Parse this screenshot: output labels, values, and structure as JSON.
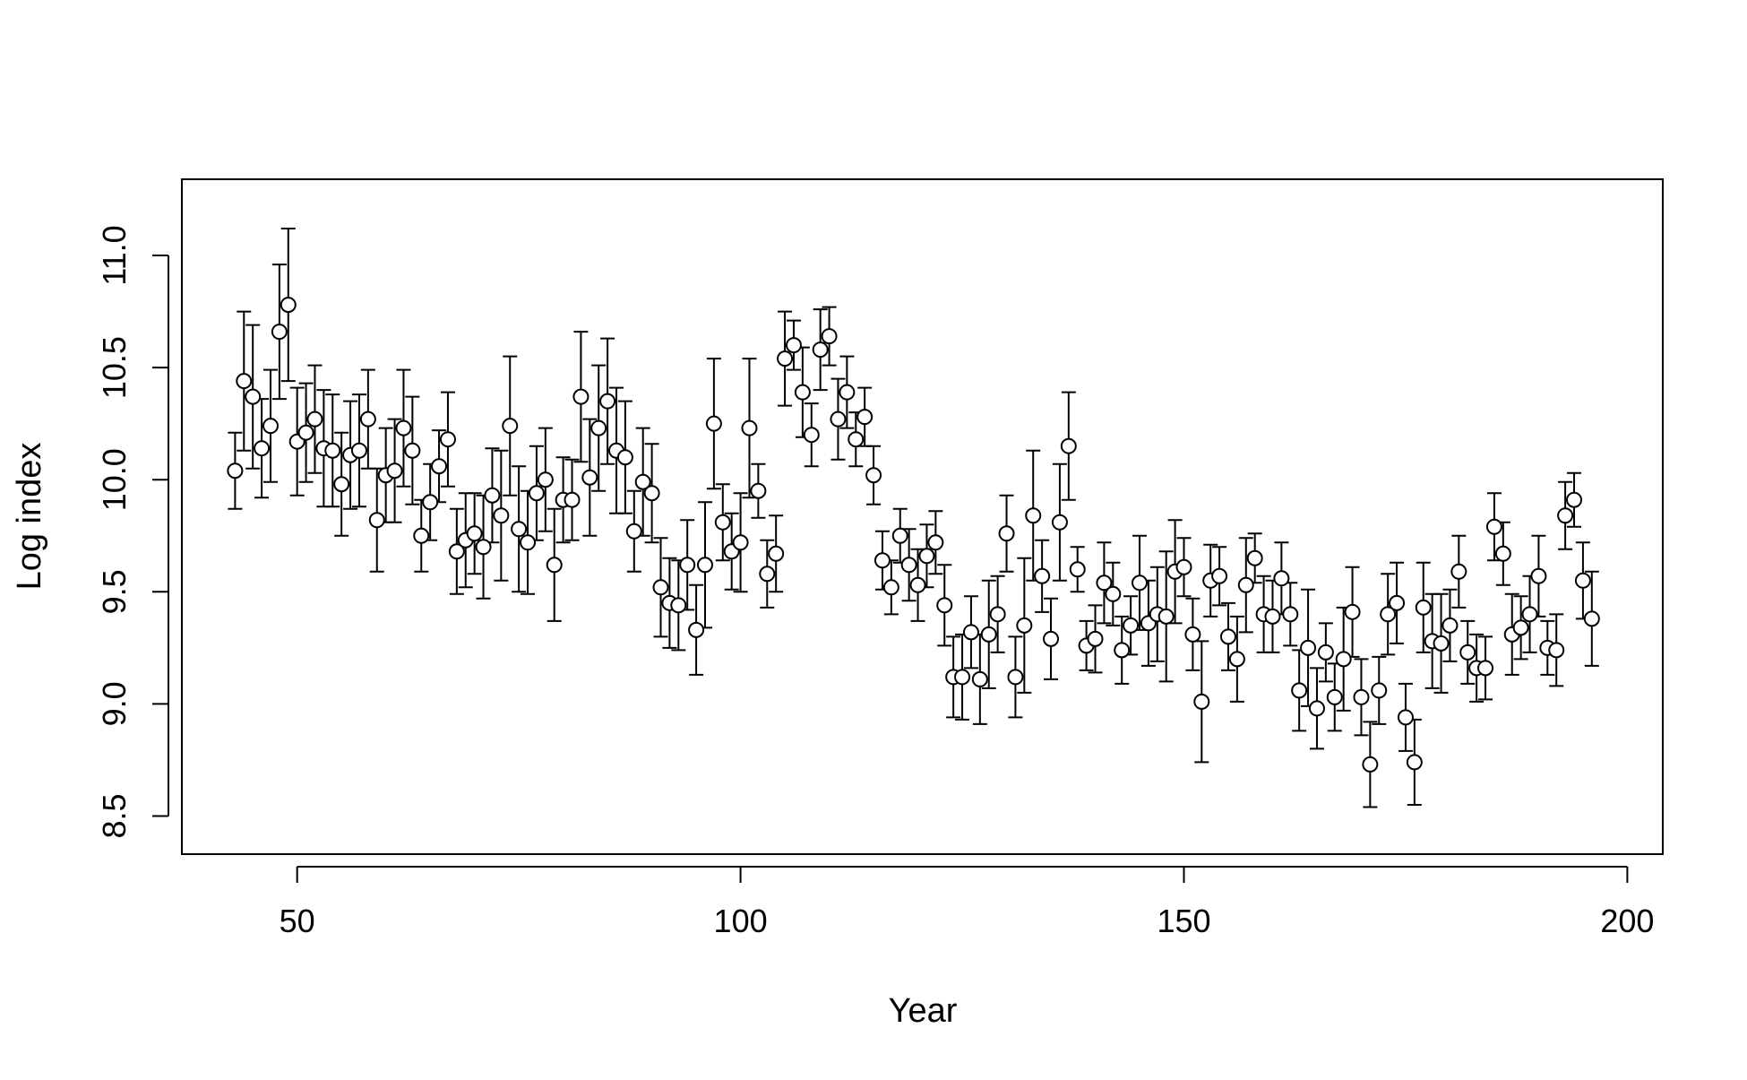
{
  "chart_data": {
    "type": "scatter",
    "title": "",
    "xlabel": "Year",
    "ylabel": "Log index",
    "xlim": [
      37,
      204
    ],
    "ylim": [
      8.33,
      11.34
    ],
    "xticks": [
      "50",
      "100",
      "150",
      "200"
    ],
    "yticks": [
      "8.5",
      "9.0",
      "9.5",
      "10.0",
      "10.5",
      "11.0"
    ],
    "grid": false,
    "legend": "none",
    "error_bars": true,
    "colors": {
      "point_fill": "#ffffff",
      "stroke": "#000000",
      "background": "#ffffff"
    },
    "series": [
      {
        "x": [
          43,
          44,
          45,
          46,
          47,
          48,
          49,
          50,
          51,
          52,
          53,
          54,
          55,
          56,
          57,
          58,
          59,
          60,
          61,
          62,
          63,
          64,
          65,
          66,
          67,
          68,
          69,
          70,
          71,
          72,
          73,
          74,
          75,
          76,
          77,
          78,
          79,
          80,
          81,
          82,
          83,
          84,
          85,
          86,
          87,
          88,
          89,
          90,
          91,
          92,
          93,
          94,
          95,
          96,
          97,
          98,
          99,
          100,
          101,
          102,
          103,
          104,
          105,
          106,
          107,
          108,
          109,
          110,
          111,
          112,
          113,
          114,
          115,
          116,
          117,
          118,
          119,
          120,
          121,
          122,
          123,
          124,
          125,
          126,
          127,
          128,
          129,
          130,
          131,
          132,
          133,
          134,
          135,
          136,
          137,
          138,
          139,
          140,
          141,
          142,
          143,
          144,
          145,
          146,
          147,
          148,
          149,
          150,
          151,
          152,
          153,
          154,
          155,
          156,
          157,
          158,
          159,
          160,
          161,
          162,
          163,
          164,
          165,
          166,
          167,
          168,
          169,
          170,
          171,
          172,
          173,
          174,
          175,
          176,
          177,
          178,
          179,
          180,
          181,
          182,
          183,
          184,
          185,
          186,
          187,
          188,
          189,
          190,
          191,
          192,
          193,
          194,
          195,
          196
        ],
        "y": [
          10.04,
          10.44,
          10.37,
          10.14,
          10.24,
          10.66,
          10.78,
          10.17,
          10.21,
          10.27,
          10.14,
          10.13,
          9.98,
          10.11,
          10.13,
          10.27,
          9.82,
          10.02,
          10.04,
          10.23,
          10.13,
          9.75,
          9.9,
          10.06,
          10.18,
          9.68,
          9.73,
          9.76,
          9.7,
          9.93,
          9.84,
          10.24,
          9.78,
          9.72,
          9.94,
          10.0,
          9.62,
          9.91,
          9.91,
          10.37,
          10.01,
          10.23,
          10.35,
          10.13,
          10.1,
          9.77,
          9.99,
          9.94,
          9.52,
          9.45,
          9.44,
          9.62,
          9.33,
          9.62,
          10.25,
          9.81,
          9.68,
          9.72,
          10.23,
          9.95,
          9.58,
          9.67,
          10.54,
          10.6,
          10.39,
          10.2,
          10.58,
          10.64,
          10.27,
          10.39,
          10.18,
          10.28,
          10.02,
          9.64,
          9.52,
          9.75,
          9.62,
          9.53,
          9.66,
          9.72,
          9.44,
          9.12,
          9.12,
          9.32,
          9.11,
          9.31,
          9.4,
          9.76,
          9.12,
          9.35,
          9.84,
          9.57,
          9.29,
          9.81,
          10.15,
          9.6,
          9.26,
          9.29,
          9.54,
          9.49,
          9.24,
          9.35,
          9.54,
          9.36,
          9.4,
          9.39,
          9.59,
          9.61,
          9.31,
          9.01,
          9.55,
          9.57,
          9.3,
          9.2,
          9.53,
          9.65,
          9.4,
          9.39,
          9.56,
          9.4,
          9.06,
          9.25,
          8.98,
          9.23,
          9.03,
          9.2,
          9.41,
          9.03,
          8.73,
          9.06,
          9.4,
          9.45,
          8.94,
          8.74,
          9.43,
          9.28,
          9.27,
          9.35,
          9.59,
          9.23,
          9.16,
          9.16,
          9.79,
          9.67,
          9.31,
          9.34,
          9.4,
          9.57,
          9.25,
          9.24,
          9.84,
          9.91,
          9.55,
          9.38
        ],
        "err": [
          0.17,
          0.31,
          0.32,
          0.22,
          0.25,
          0.3,
          0.34,
          0.24,
          0.22,
          0.24,
          0.26,
          0.25,
          0.23,
          0.24,
          0.25,
          0.22,
          0.23,
          0.21,
          0.23,
          0.26,
          0.24,
          0.16,
          0.17,
          0.16,
          0.21,
          0.19,
          0.21,
          0.18,
          0.23,
          0.21,
          0.29,
          0.31,
          0.28,
          0.23,
          0.21,
          0.23,
          0.25,
          0.19,
          0.18,
          0.29,
          0.26,
          0.28,
          0.28,
          0.28,
          0.25,
          0.18,
          0.24,
          0.22,
          0.22,
          0.2,
          0.2,
          0.2,
          0.2,
          0.28,
          0.29,
          0.17,
          0.17,
          0.22,
          0.31,
          0.12,
          0.15,
          0.17,
          0.21,
          0.11,
          0.2,
          0.14,
          0.18,
          0.13,
          0.18,
          0.16,
          0.12,
          0.13,
          0.13,
          0.13,
          0.12,
          0.12,
          0.16,
          0.16,
          0.14,
          0.14,
          0.18,
          0.18,
          0.19,
          0.16,
          0.2,
          0.24,
          0.17,
          0.17,
          0.18,
          0.3,
          0.29,
          0.16,
          0.18,
          0.26,
          0.24,
          0.1,
          0.11,
          0.15,
          0.18,
          0.14,
          0.15,
          0.13,
          0.21,
          0.19,
          0.21,
          0.29,
          0.23,
          0.13,
          0.16,
          0.27,
          0.16,
          0.13,
          0.15,
          0.19,
          0.21,
          0.11,
          0.17,
          0.16,
          0.16,
          0.14,
          0.18,
          0.26,
          0.18,
          0.13,
          0.15,
          0.23,
          0.2,
          0.17,
          0.19,
          0.15,
          0.18,
          0.18,
          0.15,
          0.19,
          0.2,
          0.21,
          0.22,
          0.16,
          0.16,
          0.14,
          0.15,
          0.14,
          0.15,
          0.14,
          0.18,
          0.14,
          0.17,
          0.18,
          0.12,
          0.16,
          0.15,
          0.12,
          0.17,
          0.21
        ],
        "marker": "open-circle"
      }
    ]
  }
}
